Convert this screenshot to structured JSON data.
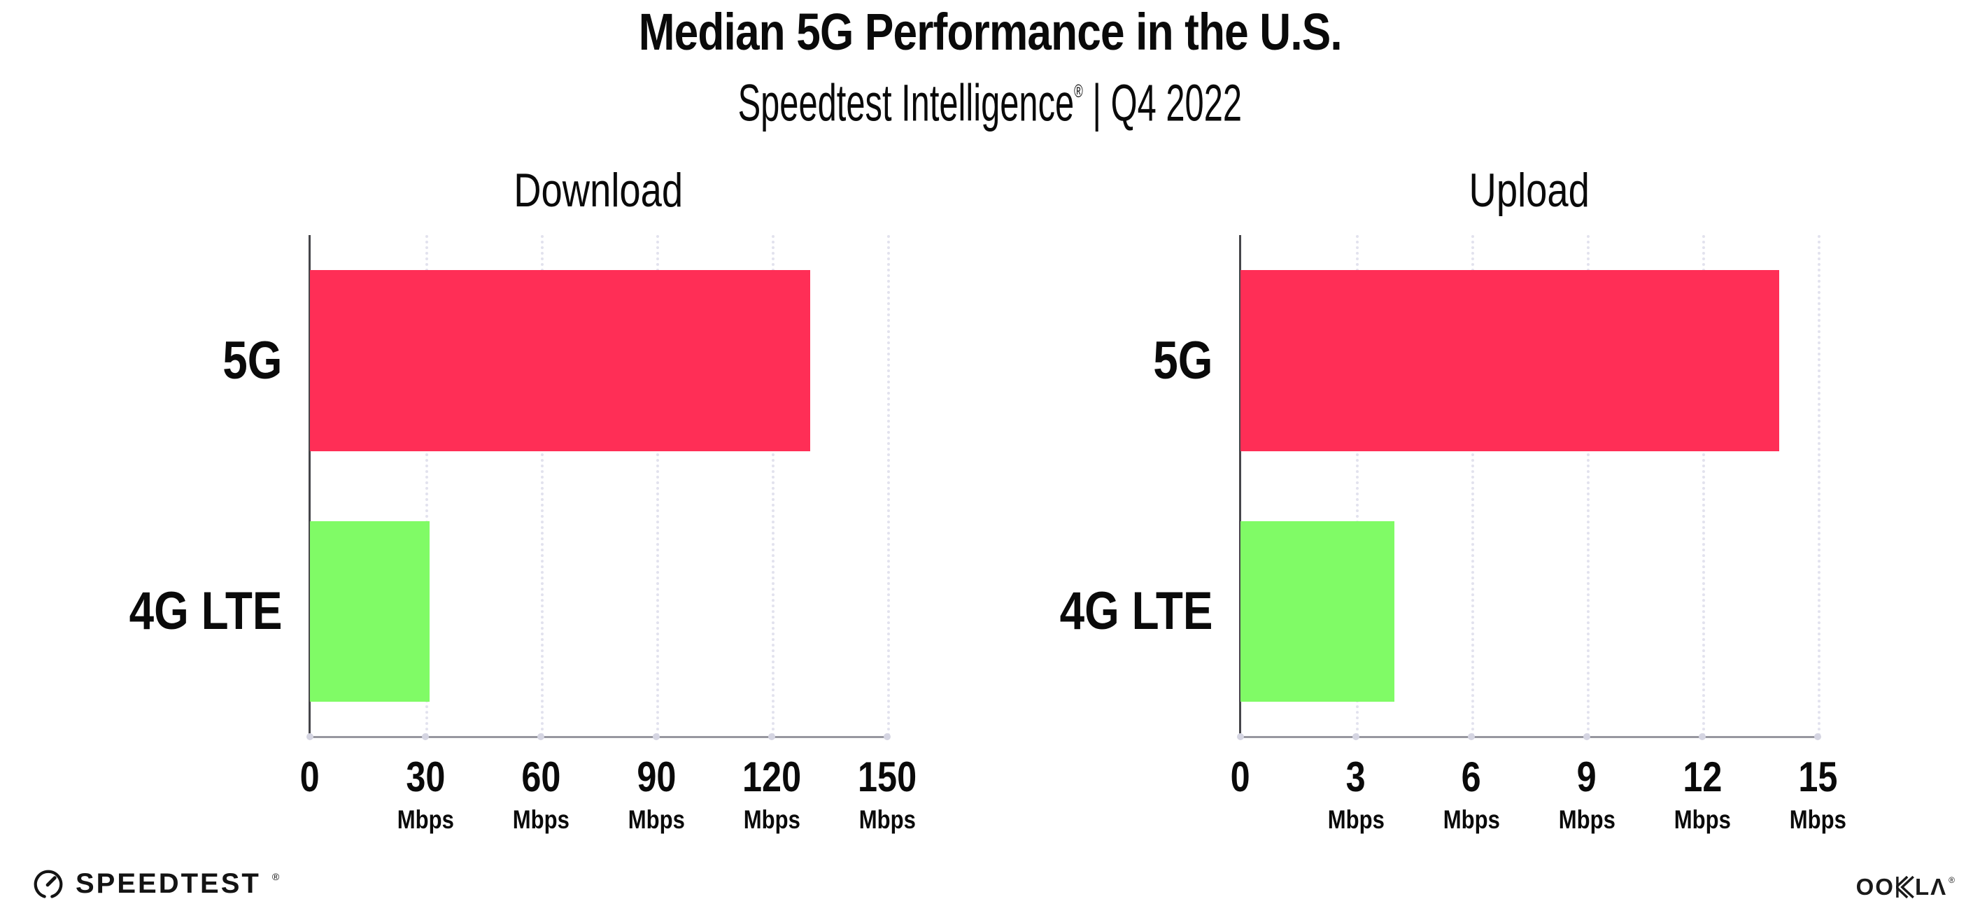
{
  "header": {
    "title": "Median 5G Performance in the U.S.",
    "subtitle_brand": "Speedtest Intelligence",
    "subtitle_mark": "®",
    "subtitle_rest": " | Q4 2022"
  },
  "chart_data": [
    {
      "type": "bar",
      "orientation": "horizontal",
      "title": "Download",
      "categories": [
        "5G",
        "4G LTE"
      ],
      "values": [
        130,
        31
      ],
      "unit": "Mbps",
      "x_ticks": [
        0,
        30,
        60,
        90,
        120,
        150
      ],
      "xlim": [
        0,
        150
      ],
      "bar_colors": [
        "#FF2E56",
        "#80FB66"
      ],
      "grid": "dotted vertical gridlines at each tick",
      "legend": "none"
    },
    {
      "type": "bar",
      "orientation": "horizontal",
      "title": "Upload",
      "categories": [
        "5G",
        "4G LTE"
      ],
      "values": [
        14,
        4
      ],
      "unit": "Mbps",
      "x_ticks": [
        0,
        3,
        6,
        9,
        12,
        15
      ],
      "xlim": [
        0,
        15
      ],
      "bar_colors": [
        "#FF2E56",
        "#80FB66"
      ],
      "grid": "dotted vertical gridlines at each tick",
      "legend": "none"
    }
  ],
  "footer": {
    "speedtest_wordmark": "SPEEDTEST",
    "speedtest_mark": "®",
    "ookla": {
      "text": "OOKLA",
      "display_oo": "OO",
      "display_l": "L",
      "display_a": "Λ",
      "mark": "®"
    }
  },
  "colors": {
    "bar_5g": "#FF2E56",
    "bar_4g_lte": "#80FB66",
    "x_axis_line": "#97979F",
    "y_axis_line": "#46464A",
    "gridline": "#E2E2EE",
    "text": "#0A0A0A",
    "background": "#FFFFFF"
  }
}
